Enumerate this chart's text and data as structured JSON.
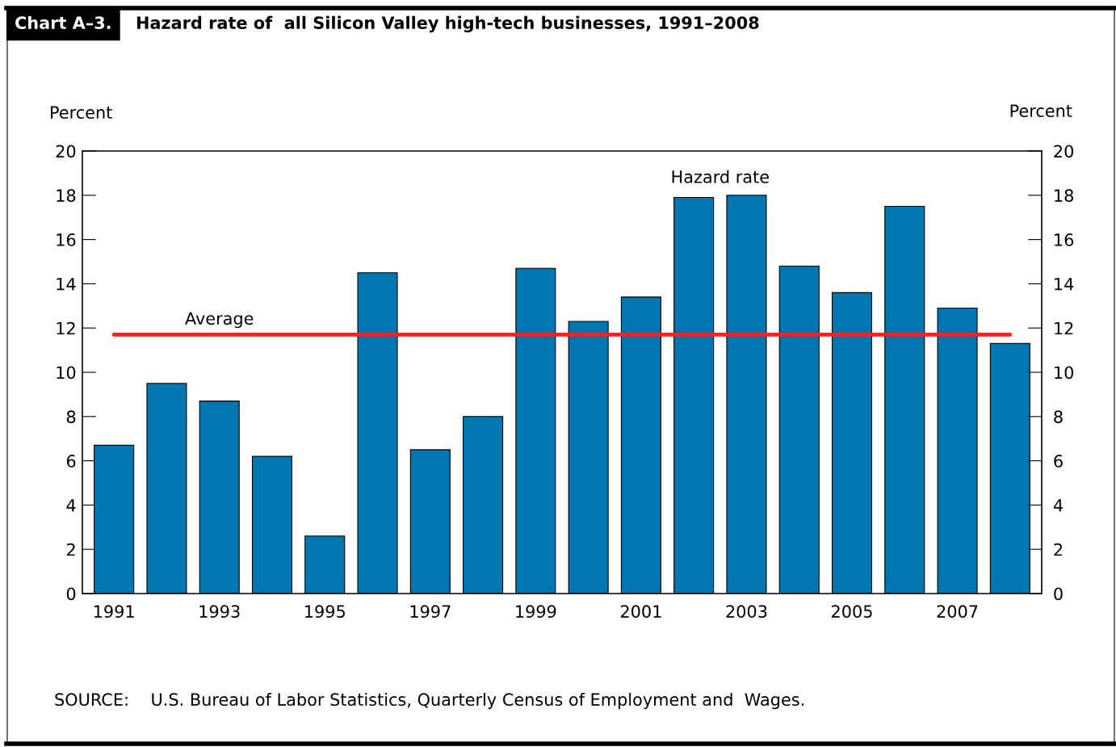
{
  "chart_data": {
    "type": "bar",
    "title": "Chart A–3.",
    "subtitle": "Hazard rate of  all Silicon Valley high-tech businesses, 1991–2008",
    "ylabel": "Percent",
    "y2label": "Percent",
    "categories": [
      "1991",
      null,
      "1993",
      null,
      "1995",
      null,
      "1997",
      null,
      "1999",
      null,
      "2001",
      null,
      "2003",
      null,
      "2005",
      null,
      "2007",
      null
    ],
    "series": [
      {
        "color": "#0077b0",
        "values": [
          6.7,
          9.5,
          8.7,
          6.2,
          2.6,
          14.5,
          6.5,
          8.0,
          14.7,
          12.3,
          13.4,
          17.9,
          18.0,
          14.8,
          13.6,
          17.5,
          12.9,
          11.3
        ]
      }
    ],
    "ylim": [
      0,
      20
    ],
    "yticks": [
      0,
      2,
      4,
      6,
      8,
      10,
      12,
      14,
      16,
      18,
      20
    ],
    "y2lim": [
      0,
      20
    ],
    "y2ticks": [
      0,
      2,
      4,
      6,
      8,
      10,
      12,
      14,
      16,
      18,
      20
    ],
    "ref_lines": [
      {
        "axis": "y",
        "value": 11.7,
        "label": "Average",
        "color": "#e8262b"
      }
    ],
    "annotations": [
      {
        "text": "Hazard rate",
        "x": "2003",
        "y": 18.0
      },
      "SOURCE:    U.S. Bureau of Labor Statistics, Quarterly Census of Employment and  Wages."
    ],
    "grid": false
  }
}
